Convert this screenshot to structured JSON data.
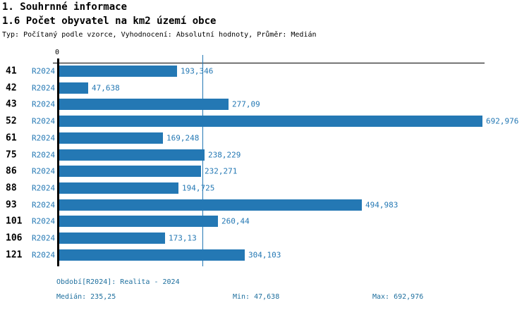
{
  "header": {
    "title": "1. Souhrnné informace",
    "subtitle": "1.6 Počet obyvatel na km2 území obce",
    "meta": "Typ: Počítaný podle vzorce, Vyhodnocení: Absolutní hodnoty, Průměr: Medián"
  },
  "chart_data": {
    "type": "bar",
    "orientation": "horizontal",
    "title": "1.6 Počet obyvatel na km2 území obce",
    "categories": [
      "41",
      "42",
      "43",
      "52",
      "61",
      "75",
      "86",
      "88",
      "93",
      "101",
      "106",
      "121"
    ],
    "series": [
      {
        "name": "R2024",
        "values": [
          193.346,
          47.638,
          277.09,
          692.976,
          169.248,
          238.229,
          232.271,
          194.725,
          494.983,
          260.44,
          173.13,
          304.103
        ]
      }
    ],
    "value_labels": [
      "193,346",
      "47,638",
      "277,09",
      "692,976",
      "169,248",
      "238,229",
      "232,271",
      "194,725",
      "494,983",
      "260,44",
      "173,13",
      "304,103"
    ],
    "axis": {
      "zero_label": "0",
      "xlim": [
        0,
        700
      ],
      "grid": false
    },
    "median": {
      "value": 235.25,
      "label": "235,25"
    },
    "legend_position": "none",
    "colors": {
      "bar": "#2478b4",
      "median_line": "#2478b4",
      "label_text": "#2478b4"
    }
  },
  "footer": {
    "period": "Období[R2024]: Realita - 2024",
    "median": "Medián: 235,25",
    "min": "Min: 47,638",
    "max": "Max: 692,976",
    "text_color": "#1e6f9e"
  }
}
